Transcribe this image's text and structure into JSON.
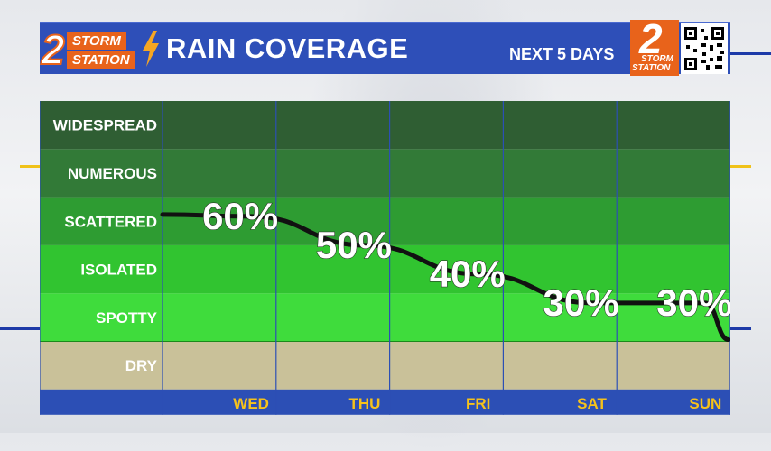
{
  "header": {
    "logo_storm": "STORM",
    "logo_station": "STATION",
    "title": "RAIN COVERAGE",
    "subtitle": "NEXT 5 DAYS",
    "corner_logo_number": "2",
    "corner_logo_storm": "STORM",
    "corner_logo_station": "STATION"
  },
  "colors": {
    "header_blue": "#2e4fb8",
    "axis_blue": "#2c4fb5",
    "dry": "#c9c199",
    "spotty": "#3fdc3c",
    "isolated": "#31c430",
    "scattered": "#2e9c32",
    "numerous": "#327a37",
    "widespread": "#2f5e33",
    "line": "#111111"
  },
  "chart_data": {
    "type": "line",
    "title": "RAIN COVERAGE",
    "subtitle": "NEXT 5 DAYS",
    "categories": [
      "WED",
      "THU",
      "FRI",
      "SAT",
      "SUN"
    ],
    "values": [
      60,
      50,
      40,
      30,
      30
    ],
    "value_labels": [
      "60%",
      "50%",
      "40%",
      "30%",
      "30%"
    ],
    "y_levels": [
      "DRY",
      "SPOTTY",
      "ISOLATED",
      "SCATTERED",
      "NUMEROUS",
      "WIDESPREAD"
    ],
    "ylim": [
      0,
      100
    ],
    "grid": true,
    "legend": "none"
  }
}
